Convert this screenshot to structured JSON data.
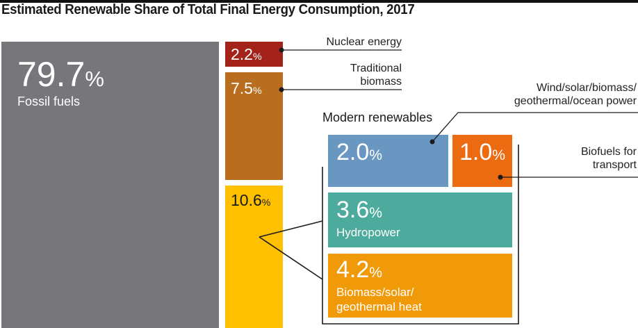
{
  "chart_data": {
    "type": "treemap",
    "title": "Estimated Renewable Share of Total Final Energy Consumption, 2017",
    "unit": "%",
    "segments": [
      {
        "key": "fossil",
        "label": "Fossil fuels",
        "value": "79.7",
        "color": "#76767b"
      },
      {
        "key": "nuclear",
        "label": "Nuclear energy",
        "value": "2.2",
        "color": "#a3231a"
      },
      {
        "key": "traditional",
        "label": "Traditional\nbiomass",
        "value": "7.5",
        "color": "#b86d1f"
      },
      {
        "key": "modern",
        "label": "Modern renewables",
        "value": "10.6",
        "color": "#ffc000"
      }
    ],
    "modern_renewables": {
      "title": "Modern renewables",
      "items": [
        {
          "key": "power",
          "label": "Wind/solar/biomass/\ngeothermal/ocean power",
          "value": "2.0",
          "color": "#6a97c1"
        },
        {
          "key": "transport",
          "label": "Biofuels for\ntransport",
          "value": "1.0",
          "color": "#ec6a10"
        },
        {
          "key": "hydro",
          "label": "Hydropower",
          "value": "3.6",
          "color": "#4cab9c"
        },
        {
          "key": "heat",
          "label": "Biomass/solar/\ngeothermal heat",
          "value": "4.2",
          "color": "#f09a0a"
        }
      ]
    }
  }
}
